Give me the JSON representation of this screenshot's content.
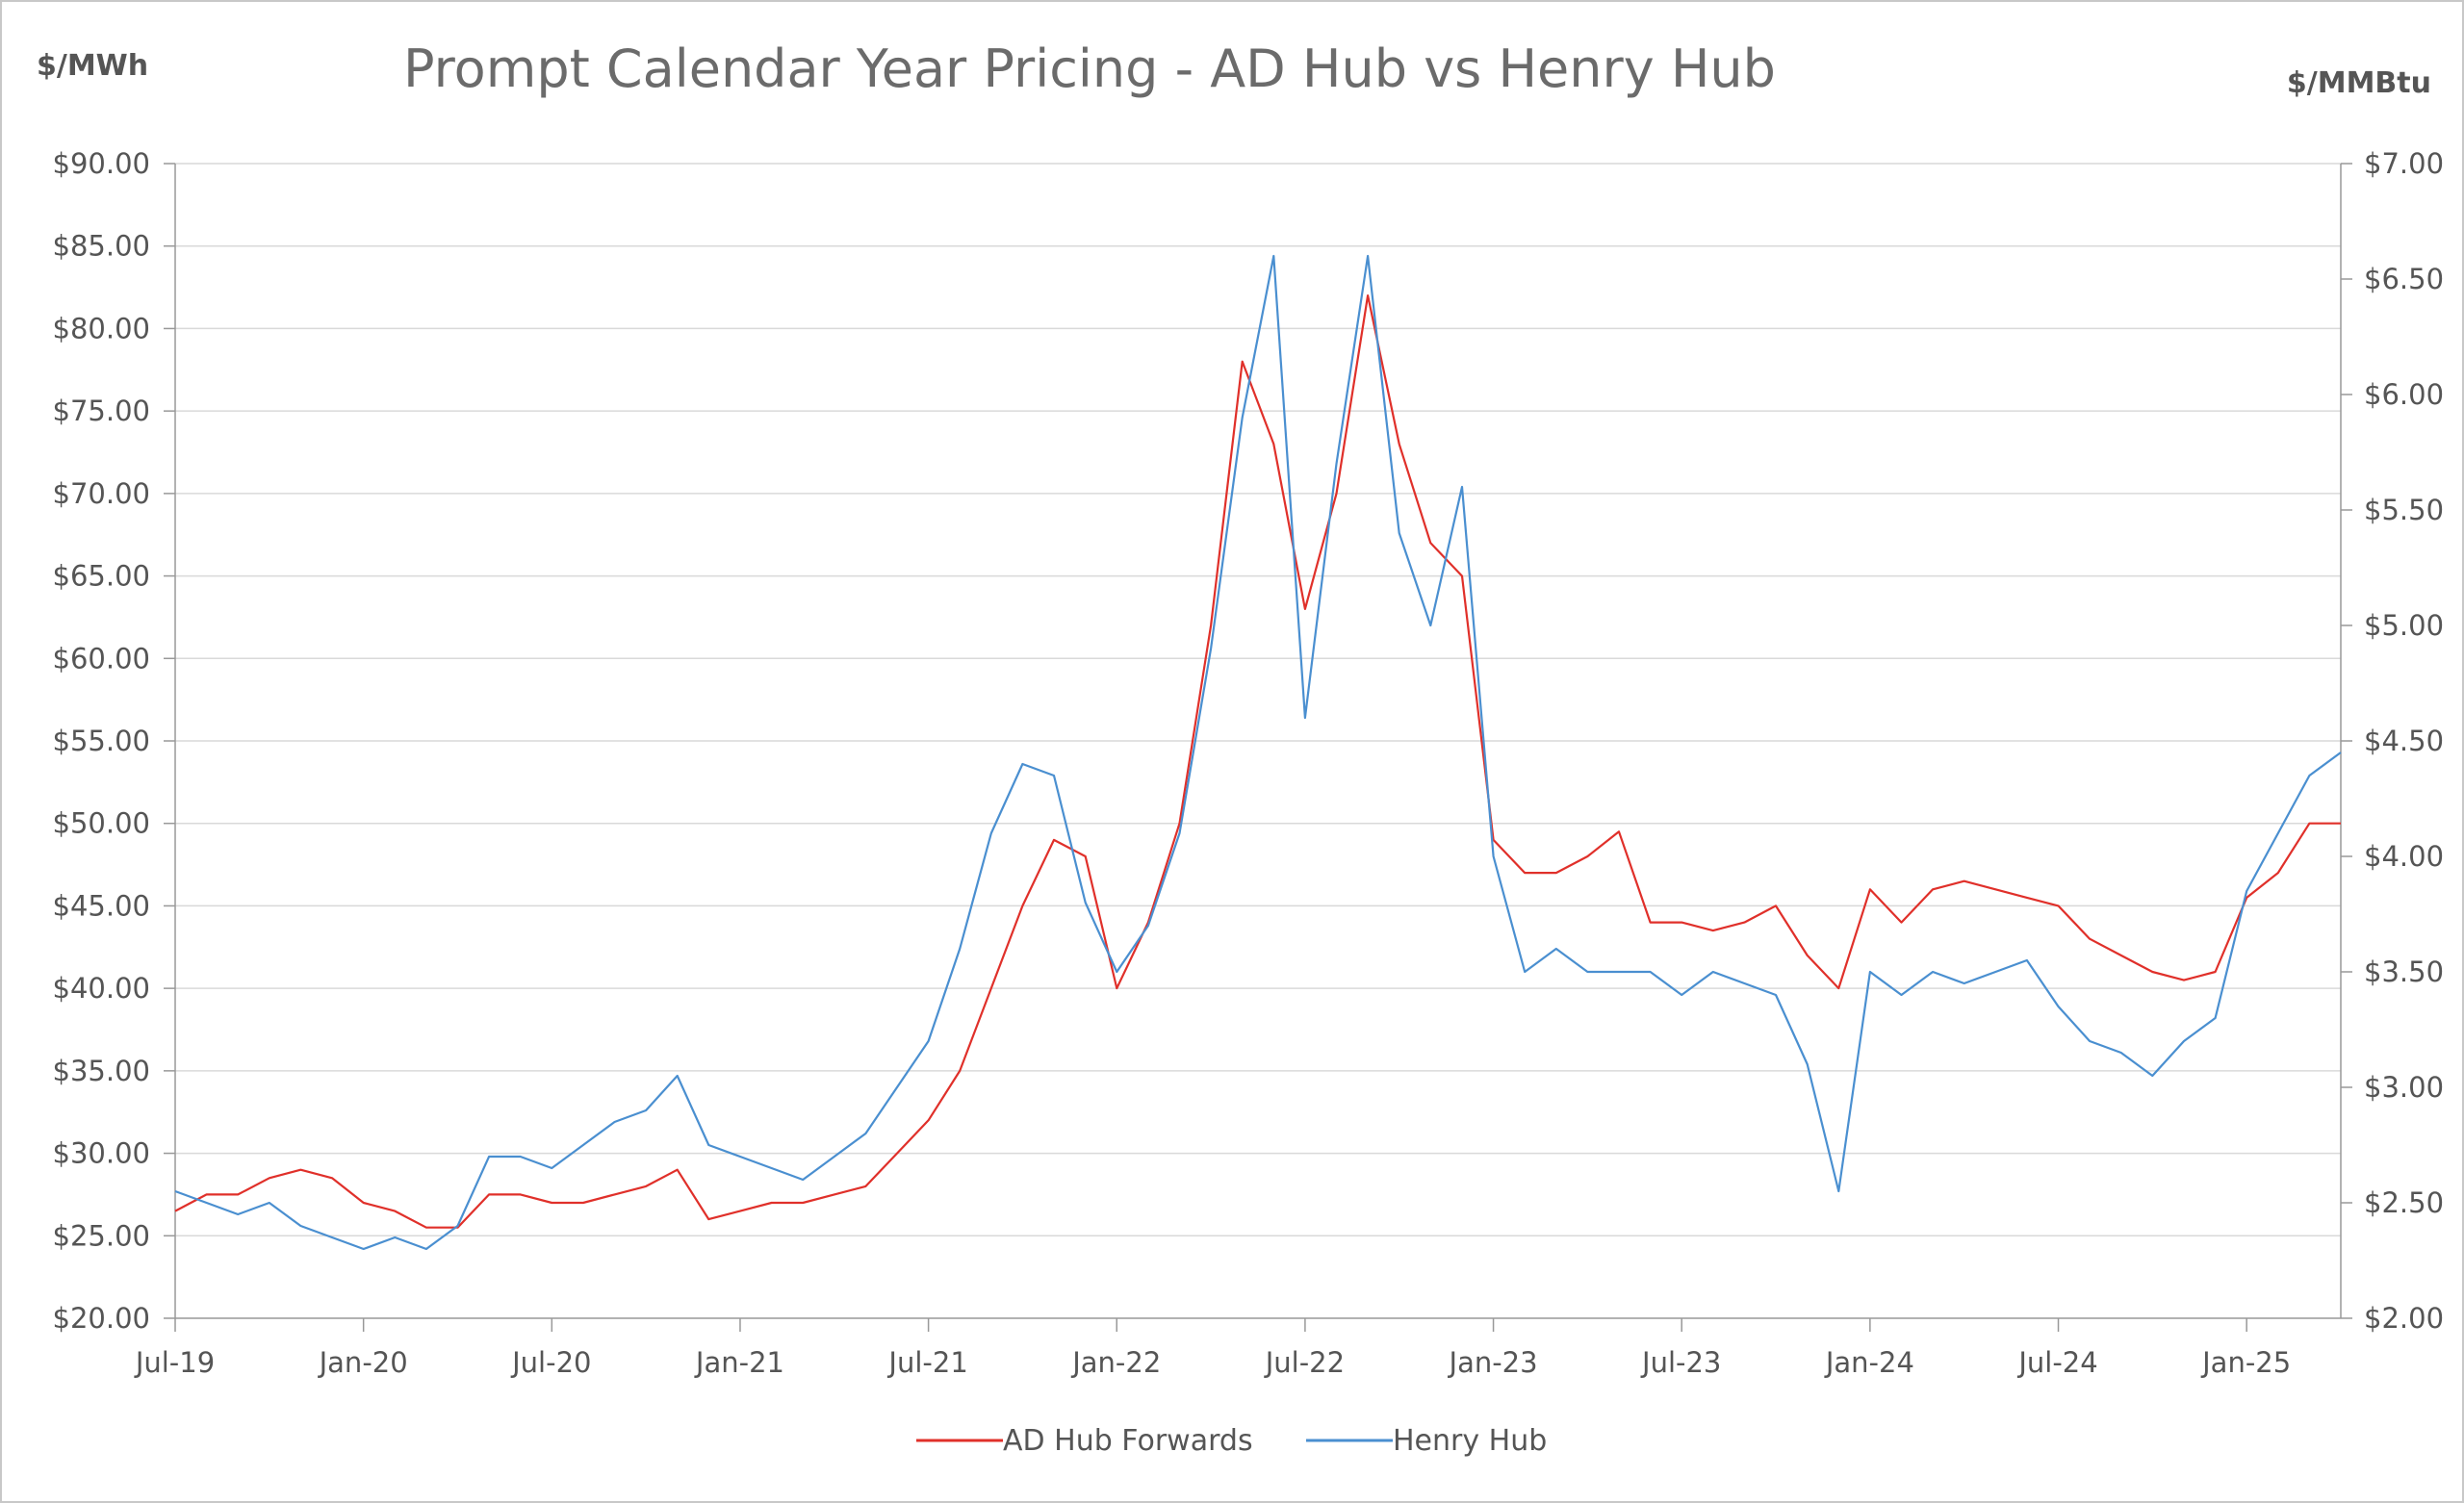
{
  "chart_data": {
    "type": "line",
    "title": "Prompt Calendar Year Pricing - AD Hub vs Henry Hub",
    "ylabel_left": "$/MWh",
    "ylabel_right": "$/MMBtu",
    "x_ticks": [
      "Jul-19",
      "Jan-20",
      "Jul-20",
      "Jan-21",
      "Jul-21",
      "Jan-22",
      "Jul-22",
      "Jan-23",
      "Jul-23",
      "Jan-24",
      "Jul-24",
      "Jan-25"
    ],
    "x_range": [
      "Jul-19",
      "Apr-25"
    ],
    "y_left_ticks": [
      "$20.00",
      "$25.00",
      "$30.00",
      "$35.00",
      "$40.00",
      "$45.00",
      "$50.00",
      "$55.00",
      "$60.00",
      "$65.00",
      "$70.00",
      "$75.00",
      "$80.00",
      "$85.00",
      "$90.00"
    ],
    "y_left_range": [
      20,
      90
    ],
    "y_right_ticks": [
      "$2.00",
      "$2.50",
      "$3.00",
      "$3.50",
      "$4.00",
      "$4.50",
      "$5.00",
      "$5.50",
      "$6.00",
      "$6.50",
      "$7.00"
    ],
    "y_right_range": [
      2.0,
      7.0
    ],
    "grid": true,
    "legend_position": "bottom",
    "series": [
      {
        "name": "AD Hub Forwards",
        "axis": "left",
        "color": "#e0302a",
        "points": [
          [
            "Jul-19",
            26.5
          ],
          [
            "Aug-19",
            27.5
          ],
          [
            "Sep-19",
            27.5
          ],
          [
            "Oct-19",
            28.5
          ],
          [
            "Nov-19",
            29.0
          ],
          [
            "Dec-19",
            28.5
          ],
          [
            "Jan-20",
            27.0
          ],
          [
            "Feb-20",
            26.5
          ],
          [
            "Mar-20",
            25.5
          ],
          [
            "Apr-20",
            25.5
          ],
          [
            "May-20",
            27.5
          ],
          [
            "Jun-20",
            27.5
          ],
          [
            "Jul-20",
            27.0
          ],
          [
            "Aug-20",
            27.0
          ],
          [
            "Sep-20",
            27.5
          ],
          [
            "Oct-20",
            28.0
          ],
          [
            "Nov-20",
            29.0
          ],
          [
            "Dec-20",
            26.0
          ],
          [
            "Jan-21",
            26.5
          ],
          [
            "Feb-21",
            27.0
          ],
          [
            "Mar-21",
            27.0
          ],
          [
            "Apr-21",
            27.5
          ],
          [
            "May-21",
            28.0
          ],
          [
            "Jun-21",
            30.0
          ],
          [
            "Jul-21",
            32.0
          ],
          [
            "Aug-21",
            35.0
          ],
          [
            "Sep-21",
            40.0
          ],
          [
            "Oct-21",
            45.0
          ],
          [
            "Nov-21",
            49.0
          ],
          [
            "Dec-21",
            48.0
          ],
          [
            "Jan-22",
            40.0
          ],
          [
            "Feb-22",
            44.0
          ],
          [
            "Mar-22",
            50.0
          ],
          [
            "Apr-22",
            62.0
          ],
          [
            "May-22",
            78.0
          ],
          [
            "Jun-22",
            73.0
          ],
          [
            "Jul-22",
            63.0
          ],
          [
            "Aug-22",
            70.0
          ],
          [
            "Sep-22",
            82.0
          ],
          [
            "Oct-22",
            73.0
          ],
          [
            "Nov-22",
            67.0
          ],
          [
            "Dec-22",
            65.0
          ],
          [
            "Jan-23",
            49.0
          ],
          [
            "Feb-23",
            47.0
          ],
          [
            "Mar-23",
            47.0
          ],
          [
            "Apr-23",
            48.0
          ],
          [
            "May-23",
            49.5
          ],
          [
            "Jun-23",
            44.0
          ],
          [
            "Jul-23",
            44.0
          ],
          [
            "Aug-23",
            43.5
          ],
          [
            "Sep-23",
            44.0
          ],
          [
            "Oct-23",
            45.0
          ],
          [
            "Nov-23",
            42.0
          ],
          [
            "Dec-23",
            40.0
          ],
          [
            "Jan-24",
            46.0
          ],
          [
            "Feb-24",
            44.0
          ],
          [
            "Mar-24",
            46.0
          ],
          [
            "Apr-24",
            46.5
          ],
          [
            "May-24",
            46.0
          ],
          [
            "Jun-24",
            45.5
          ],
          [
            "Jul-24",
            45.0
          ],
          [
            "Aug-24",
            43.0
          ],
          [
            "Sep-24",
            42.0
          ],
          [
            "Oct-24",
            41.0
          ],
          [
            "Nov-24",
            40.5
          ],
          [
            "Dec-24",
            41.0
          ],
          [
            "Jan-25",
            45.5
          ],
          [
            "Feb-25",
            47.0
          ],
          [
            "Mar-25",
            50.0
          ],
          [
            "Apr-25",
            50.0
          ]
        ]
      },
      {
        "name": "Henry Hub",
        "axis": "right",
        "color": "#4a8fd0",
        "points": [
          [
            "Jul-19",
            2.55
          ],
          [
            "Aug-19",
            2.5
          ],
          [
            "Sep-19",
            2.45
          ],
          [
            "Oct-19",
            2.5
          ],
          [
            "Nov-19",
            2.4
          ],
          [
            "Dec-19",
            2.35
          ],
          [
            "Jan-20",
            2.3
          ],
          [
            "Feb-20",
            2.35
          ],
          [
            "Mar-20",
            2.3
          ],
          [
            "Apr-20",
            2.4
          ],
          [
            "May-20",
            2.7
          ],
          [
            "Jun-20",
            2.7
          ],
          [
            "Jul-20",
            2.65
          ],
          [
            "Aug-20",
            2.75
          ],
          [
            "Sep-20",
            2.85
          ],
          [
            "Oct-20",
            2.9
          ],
          [
            "Nov-20",
            3.05
          ],
          [
            "Dec-20",
            2.75
          ],
          [
            "Jan-21",
            2.7
          ],
          [
            "Feb-21",
            2.65
          ],
          [
            "Mar-21",
            2.6
          ],
          [
            "Apr-21",
            2.7
          ],
          [
            "May-21",
            2.8
          ],
          [
            "Jun-21",
            3.0
          ],
          [
            "Jul-21",
            3.2
          ],
          [
            "Aug-21",
            3.6
          ],
          [
            "Sep-21",
            4.1
          ],
          [
            "Oct-21",
            4.4
          ],
          [
            "Nov-21",
            4.35
          ],
          [
            "Dec-21",
            3.8
          ],
          [
            "Jan-22",
            3.5
          ],
          [
            "Feb-22",
            3.7
          ],
          [
            "Mar-22",
            4.1
          ],
          [
            "Apr-22",
            4.9
          ],
          [
            "May-22",
            5.9
          ],
          [
            "Jun-22",
            6.6
          ],
          [
            "Jul-22",
            4.6
          ],
          [
            "Aug-22",
            5.7
          ],
          [
            "Sep-22",
            6.6
          ],
          [
            "Oct-22",
            5.4
          ],
          [
            "Nov-22",
            5.0
          ],
          [
            "Dec-22",
            5.6
          ],
          [
            "Jan-23",
            4.0
          ],
          [
            "Feb-23",
            3.5
          ],
          [
            "Mar-23",
            3.6
          ],
          [
            "Apr-23",
            3.5
          ],
          [
            "May-23",
            3.5
          ],
          [
            "Jun-23",
            3.5
          ],
          [
            "Jul-23",
            3.4
          ],
          [
            "Aug-23",
            3.5
          ],
          [
            "Sep-23",
            3.45
          ],
          [
            "Oct-23",
            3.4
          ],
          [
            "Nov-23",
            3.1
          ],
          [
            "Dec-23",
            2.55
          ],
          [
            "Jan-24",
            3.5
          ],
          [
            "Feb-24",
            3.4
          ],
          [
            "Mar-24",
            3.5
          ],
          [
            "Apr-24",
            3.45
          ],
          [
            "May-24",
            3.5
          ],
          [
            "Jun-24",
            3.55
          ],
          [
            "Jul-24",
            3.35
          ],
          [
            "Aug-24",
            3.2
          ],
          [
            "Sep-24",
            3.15
          ],
          [
            "Oct-24",
            3.05
          ],
          [
            "Nov-24",
            3.2
          ],
          [
            "Dec-24",
            3.3
          ],
          [
            "Jan-25",
            3.85
          ],
          [
            "Feb-25",
            4.1
          ],
          [
            "Mar-25",
            4.35
          ],
          [
            "Apr-25",
            4.45
          ]
        ]
      }
    ]
  }
}
